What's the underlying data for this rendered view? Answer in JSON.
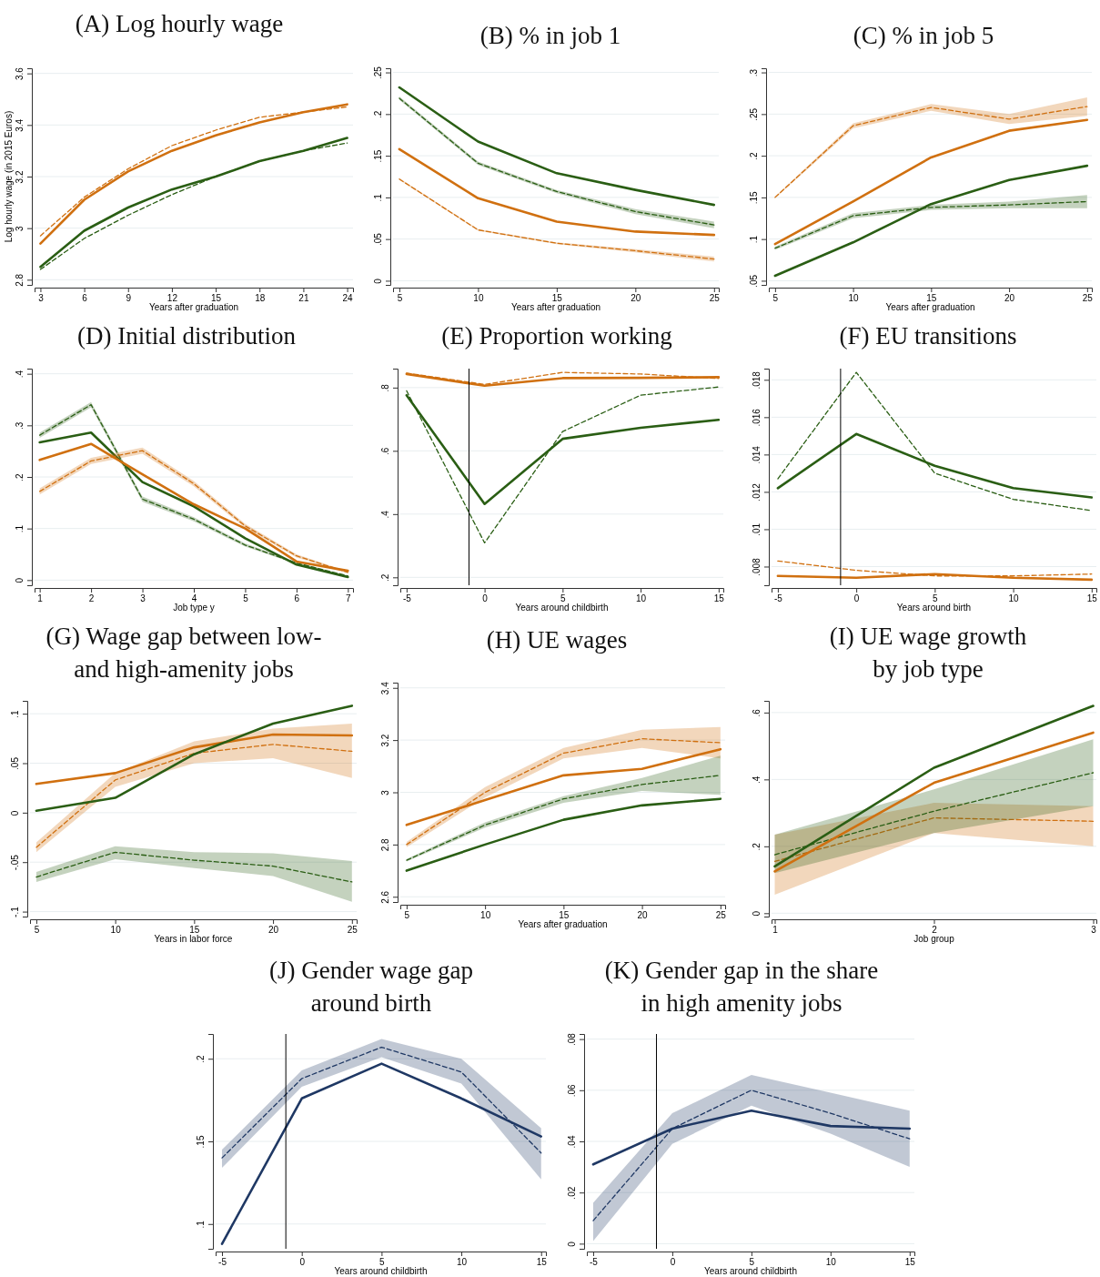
{
  "chart_data": [
    {
      "type": "line",
      "title": "(A) Log hourly wage",
      "xlabel": "Years after graduation",
      "ylabel": "Log hourly wage (in 2015 Euros)",
      "x": [
        3,
        6,
        9,
        12,
        15,
        18,
        21,
        24
      ],
      "xlim": [
        2.6,
        24.4
      ],
      "xticks": [
        3,
        6,
        9,
        12,
        15,
        18,
        21,
        24
      ],
      "ylim": [
        2.78,
        3.62
      ],
      "yticks": [
        2.8,
        3,
        3.2,
        3.4,
        3.6
      ],
      "grid": "y",
      "series": [
        {
          "color": "#d07010",
          "line_style": "solid",
          "values": [
            2.94,
            3.11,
            3.22,
            3.3,
            3.36,
            3.41,
            3.45,
            3.48
          ]
        },
        {
          "color": "#d07010",
          "line_style": "dashed",
          "values": [
            2.97,
            3.12,
            3.23,
            3.32,
            3.38,
            3.43,
            3.45,
            3.47
          ]
        },
        {
          "color": "#2a5e14",
          "line_style": "solid",
          "values": [
            2.85,
            2.99,
            3.08,
            3.15,
            3.2,
            3.26,
            3.3,
            3.35
          ]
        },
        {
          "color": "#2a5e14",
          "line_style": "dashed",
          "values": [
            2.84,
            2.96,
            3.05,
            3.13,
            3.2,
            3.26,
            3.3,
            3.33
          ]
        }
      ]
    },
    {
      "type": "line",
      "title": "(B) % in job 1",
      "xlabel": "Years after graduation",
      "x": [
        5,
        10,
        15,
        20,
        25
      ],
      "xlim": [
        4.6,
        25.3
      ],
      "xticks": [
        5,
        10,
        15,
        20,
        25
      ],
      "ylim": [
        -0.005,
        0.255
      ],
      "yticks": [
        0,
        {
          "value": 0.05,
          "label": ".05"
        },
        {
          "value": 0.1,
          "label": ".1"
        },
        {
          "value": 0.15,
          "label": ".15"
        },
        {
          "value": 0.2,
          "label": ".2"
        },
        {
          "value": 0.25,
          "label": ".25"
        }
      ],
      "grid": "y",
      "series": [
        {
          "color": "#2a5e14",
          "line_style": "solid",
          "values": [
            0.232,
            0.167,
            0.129,
            0.109,
            0.091
          ]
        },
        {
          "color": "#2a5e14",
          "line_style": "dashed",
          "values": [
            0.219,
            0.141,
            0.107,
            0.083,
            0.067
          ],
          "lower": [
            0.217,
            0.139,
            0.105,
            0.08,
            0.063
          ],
          "upper": [
            0.221,
            0.143,
            0.109,
            0.086,
            0.071
          ]
        },
        {
          "color": "#d07010",
          "line_style": "solid",
          "values": [
            0.158,
            0.099,
            0.071,
            0.059,
            0.055
          ]
        },
        {
          "color": "#d07010",
          "line_style": "dashed",
          "values": [
            0.122,
            0.061,
            0.045,
            0.036,
            0.026
          ],
          "lower": [
            0.121,
            0.06,
            0.044,
            0.034,
            0.023
          ],
          "upper": [
            0.123,
            0.062,
            0.046,
            0.038,
            0.029
          ]
        }
      ]
    },
    {
      "type": "line",
      "title": "(C) % in job 5",
      "xlabel": "Years after graduation",
      "x": [
        5,
        10,
        15,
        20,
        25
      ],
      "xlim": [
        4.6,
        25.3
      ],
      "xticks": [
        5,
        10,
        15,
        20,
        25
      ],
      "ylim": [
        0.045,
        0.305
      ],
      "yticks": [
        {
          "value": 0.05,
          "label": ".05"
        },
        {
          "value": 0.1,
          "label": ".1"
        },
        {
          "value": 0.15,
          "label": ".15"
        },
        {
          "value": 0.2,
          "label": ".2"
        },
        {
          "value": 0.25,
          "label": ".25"
        },
        {
          "value": 0.3,
          "label": ".3"
        }
      ],
      "grid": "y",
      "series": [
        {
          "color": "#d07010",
          "line_style": "dashed",
          "values": [
            0.15,
            0.236,
            0.258,
            0.244,
            0.259
          ],
          "lower": [
            0.149,
            0.233,
            0.254,
            0.238,
            0.248
          ],
          "upper": [
            0.151,
            0.239,
            0.262,
            0.25,
            0.27
          ]
        },
        {
          "color": "#d07010",
          "line_style": "solid",
          "values": [
            0.094,
            0.145,
            0.198,
            0.23,
            0.243
          ]
        },
        {
          "color": "#2a5e14",
          "line_style": "solid",
          "values": [
            0.056,
            0.096,
            0.142,
            0.171,
            0.188
          ]
        },
        {
          "color": "#2a5e14",
          "line_style": "dashed",
          "values": [
            0.089,
            0.128,
            0.138,
            0.141,
            0.145
          ],
          "lower": [
            0.087,
            0.125,
            0.135,
            0.137,
            0.137
          ],
          "upper": [
            0.091,
            0.131,
            0.141,
            0.145,
            0.153
          ]
        }
      ]
    },
    {
      "type": "line",
      "title": "(D) Initial distribution",
      "xlabel": "Job type y",
      "x": [
        1,
        2,
        3,
        4,
        5,
        6,
        7
      ],
      "xlim": [
        0.9,
        7.1
      ],
      "xticks": [
        1,
        2,
        3,
        4,
        5,
        6,
        7
      ],
      "ylim": [
        -0.01,
        0.41
      ],
      "yticks": [
        0,
        {
          "value": 0.1,
          "label": ".1"
        },
        {
          "value": 0.2,
          "label": ".2"
        },
        {
          "value": 0.3,
          "label": ".3"
        },
        {
          "value": 0.4,
          "label": ".4"
        }
      ],
      "grid": "y",
      "series": [
        {
          "color": "#2a5e14",
          "line_style": "dashed",
          "values": [
            0.281,
            0.34,
            0.157,
            0.118,
            0.068,
            0.033,
            0.008
          ],
          "lower": [
            0.276,
            0.335,
            0.152,
            0.114,
            0.065,
            0.031,
            0.007
          ],
          "upper": [
            0.286,
            0.345,
            0.162,
            0.122,
            0.071,
            0.035,
            0.009
          ]
        },
        {
          "color": "#2a5e14",
          "line_style": "solid",
          "values": [
            0.267,
            0.286,
            0.19,
            0.143,
            0.081,
            0.03,
            0.006
          ]
        },
        {
          "color": "#d07010",
          "line_style": "solid",
          "values": [
            0.233,
            0.264,
            0.205,
            0.147,
            0.1,
            0.036,
            0.018
          ]
        },
        {
          "color": "#d07010",
          "line_style": "dashed",
          "values": [
            0.172,
            0.231,
            0.251,
            0.187,
            0.105,
            0.047,
            0.015
          ],
          "lower": [
            0.166,
            0.225,
            0.245,
            0.182,
            0.101,
            0.044,
            0.013
          ],
          "upper": [
            0.178,
            0.237,
            0.257,
            0.192,
            0.109,
            0.05,
            0.017
          ]
        }
      ]
    },
    {
      "type": "line",
      "title": "(E) Proportion working",
      "xlabel": "Years around childbirth",
      "x": [
        -5,
        0,
        5,
        10,
        15
      ],
      "xlim": [
        -5.4,
        15.3
      ],
      "xticks": [
        -5,
        0,
        5,
        10,
        15
      ],
      "ylim": [
        0.175,
        0.86
      ],
      "yticks": [
        {
          "value": 0.2,
          "label": ".2"
        },
        {
          "value": 0.4,
          "label": ".4"
        },
        {
          "value": 0.6,
          "label": ".6"
        },
        {
          "value": 0.8,
          "label": ".8"
        }
      ],
      "grid": "y",
      "ref_lines": [
        {
          "axis": "x",
          "value": -1,
          "color": "#000000"
        }
      ],
      "series": [
        {
          "color": "#d07010",
          "line_style": "solid",
          "values": [
            0.843,
            0.806,
            0.83,
            0.831,
            0.833
          ]
        },
        {
          "color": "#d07010",
          "line_style": "dashed",
          "values": [
            0.846,
            0.81,
            0.848,
            0.843,
            0.829
          ]
        },
        {
          "color": "#2a5e14",
          "line_style": "solid",
          "values": [
            0.776,
            0.432,
            0.638,
            0.673,
            0.698
          ]
        },
        {
          "color": "#2a5e14",
          "line_style": "dashed",
          "values": [
            0.79,
            0.309,
            0.661,
            0.776,
            0.802
          ]
        }
      ]
    },
    {
      "type": "line",
      "title": "(F) EU transitions",
      "xlabel": "Years around birth",
      "x": [
        -5,
        0,
        5,
        10,
        15
      ],
      "xlim": [
        -5.4,
        15.3
      ],
      "xticks": [
        -5,
        0,
        5,
        10,
        15
      ],
      "ylim": [
        0.007,
        0.0186
      ],
      "yticks": [
        {
          "value": 0.008,
          "label": ".008"
        },
        {
          "value": 0.01,
          "label": ".01"
        },
        {
          "value": 0.012,
          "label": ".012"
        },
        {
          "value": 0.014,
          "label": ".014"
        },
        {
          "value": 0.016,
          "label": ".016"
        },
        {
          "value": 0.018,
          "label": ".018"
        }
      ],
      "grid": "y",
      "ref_lines": [
        {
          "axis": "x",
          "value": -1,
          "color": "#000000"
        }
      ],
      "series": [
        {
          "color": "#2a5e14",
          "line_style": "solid",
          "values": [
            0.0122,
            0.0151,
            0.0134,
            0.0122,
            0.0117
          ]
        },
        {
          "color": "#2a5e14",
          "line_style": "dashed",
          "values": [
            0.0127,
            0.0184,
            0.013,
            0.0116,
            0.011
          ]
        },
        {
          "color": "#d07010",
          "line_style": "solid",
          "values": [
            0.0075,
            0.0074,
            0.0076,
            0.0074,
            0.0073
          ]
        },
        {
          "color": "#d07010",
          "line_style": "dashed",
          "values": [
            0.0083,
            0.0078,
            0.0075,
            0.0075,
            0.0076
          ]
        }
      ]
    },
    {
      "type": "line",
      "title": "(G) Wage gap between low-\nand high-amenity jobs",
      "xlabel": "Years in labor force",
      "x": [
        5,
        10,
        15,
        20,
        25
      ],
      "xlim": [
        4.6,
        25.3
      ],
      "xticks": [
        5,
        10,
        15,
        20,
        25
      ],
      "ylim": [
        -0.105,
        0.113
      ],
      "yticks": [
        {
          "value": -0.1,
          "label": "-.1"
        },
        {
          "value": -0.05,
          "label": "-.05"
        },
        0,
        {
          "value": 0.05,
          "label": ".05"
        },
        {
          "value": 0.1,
          "label": ".1"
        }
      ],
      "grid": "y",
      "series": [
        {
          "color": "#d07010",
          "line_style": "dashed",
          "values": [
            -0.035,
            0.033,
            0.06,
            0.069,
            0.062
          ],
          "lower": [
            -0.04,
            0.026,
            0.05,
            0.055,
            0.035
          ],
          "upper": [
            -0.03,
            0.04,
            0.072,
            0.085,
            0.09
          ]
        },
        {
          "color": "#2a5e14",
          "line_style": "dashed",
          "values": [
            -0.065,
            -0.04,
            -0.048,
            -0.054,
            -0.07
          ],
          "lower": [
            -0.07,
            -0.047,
            -0.056,
            -0.064,
            -0.09
          ],
          "upper": [
            -0.06,
            -0.034,
            -0.04,
            -0.041,
            -0.049
          ]
        },
        {
          "color": "#d07010",
          "line_style": "solid",
          "values": [
            0.029,
            0.04,
            0.066,
            0.079,
            0.078
          ]
        },
        {
          "color": "#2a5e14",
          "line_style": "solid",
          "values": [
            0.002,
            0.015,
            0.059,
            0.09,
            0.108
          ]
        }
      ]
    },
    {
      "type": "line",
      "title": "(H) UE wages",
      "xlabel": "Years after graduation",
      "x": [
        5,
        10,
        15,
        20,
        25
      ],
      "xlim": [
        4.6,
        25.3
      ],
      "xticks": [
        5,
        10,
        15,
        20,
        25
      ],
      "ylim": [
        2.58,
        3.42
      ],
      "yticks": [
        2.6,
        2.8,
        3,
        3.2,
        3.4
      ],
      "grid": "y",
      "series": [
        {
          "color": "#d07010",
          "line_style": "dashed",
          "values": [
            2.8,
            3.0,
            3.15,
            3.205,
            3.19
          ],
          "lower": [
            2.79,
            2.98,
            3.13,
            3.17,
            3.13
          ],
          "upper": [
            2.81,
            3.02,
            3.17,
            3.24,
            3.25
          ]
        },
        {
          "color": "#2a5e14",
          "line_style": "dashed",
          "values": [
            2.74,
            2.875,
            2.975,
            3.03,
            3.065
          ],
          "lower": [
            2.735,
            2.865,
            2.96,
            3.005,
            2.99
          ],
          "upper": [
            2.745,
            2.885,
            2.985,
            3.055,
            3.14
          ]
        },
        {
          "color": "#d07010",
          "line_style": "solid",
          "values": [
            2.875,
            2.97,
            3.065,
            3.09,
            3.165
          ]
        },
        {
          "color": "#2a5e14",
          "line_style": "solid",
          "values": [
            2.7,
            2.8,
            2.895,
            2.95,
            2.975
          ]
        }
      ]
    },
    {
      "type": "line",
      "title": "(I) UE wage growth\nby job type",
      "xlabel": "Job group",
      "x": [
        1,
        2,
        3
      ],
      "xlim": [
        0.98,
        3.02
      ],
      "xticks": [
        1,
        2,
        3
      ],
      "ylim": [
        -0.01,
        0.635
      ],
      "yticks": [
        0,
        {
          "value": 0.2,
          "label": ".2"
        },
        {
          "value": 0.4,
          "label": ".4"
        },
        {
          "value": 0.6,
          "label": ".6"
        }
      ],
      "grid": "y",
      "series": [
        {
          "color": "#d07010",
          "line_style": "dashed",
          "values": [
            0.155,
            0.285,
            0.275
          ],
          "lower": [
            0.055,
            0.24,
            0.2
          ],
          "upper": [
            0.235,
            0.33,
            0.32
          ]
        },
        {
          "color": "#2a5e14",
          "line_style": "dashed",
          "values": [
            0.175,
            0.305,
            0.42
          ],
          "lower": [
            0.12,
            0.24,
            0.32
          ],
          "upper": [
            0.235,
            0.37,
            0.52
          ]
        },
        {
          "color": "#2a5e14",
          "line_style": "solid",
          "values": [
            0.14,
            0.435,
            0.62
          ]
        },
        {
          "color": "#d07010",
          "line_style": "solid",
          "values": [
            0.125,
            0.39,
            0.54
          ]
        }
      ]
    },
    {
      "type": "line",
      "title": "(J) Gender wage gap\naround birth",
      "xlabel": "Years around childbirth",
      "x": [
        -5,
        0,
        5,
        10,
        15
      ],
      "xlim": [
        -5.4,
        15.3
      ],
      "xticks": [
        -5,
        0,
        5,
        10,
        15
      ],
      "ylim": [
        0.085,
        0.215
      ],
      "yticks": [
        {
          "value": 0.1,
          "label": ".1"
        },
        {
          "value": 0.15,
          "label": ".15"
        },
        {
          "value": 0.2,
          "label": ".2"
        }
      ],
      "grid": "y",
      "ref_lines": [
        {
          "axis": "x",
          "value": -1,
          "color": "#000000"
        }
      ],
      "series": [
        {
          "color": "#1f3864",
          "line_style": "dashed",
          "values": [
            0.14,
            0.188,
            0.207,
            0.192,
            0.143
          ],
          "lower": [
            0.134,
            0.183,
            0.201,
            0.185,
            0.127
          ],
          "upper": [
            0.145,
            0.193,
            0.212,
            0.2,
            0.158
          ]
        },
        {
          "color": "#1f3864",
          "line_style": "solid",
          "values": [
            0.088,
            0.176,
            0.197,
            0.176,
            0.153
          ]
        }
      ]
    },
    {
      "type": "line",
      "title": "(K) Gender gap in the share\nin high amenity jobs",
      "xlabel": "Years around childbirth",
      "x": [
        -5,
        0,
        5,
        10,
        15
      ],
      "xlim": [
        -5.4,
        15.3
      ],
      "xticks": [
        -5,
        0,
        5,
        10,
        15
      ],
      "ylim": [
        -0.002,
        0.082
      ],
      "yticks": [
        0,
        {
          "value": 0.02,
          "label": ".02"
        },
        {
          "value": 0.04,
          "label": ".04"
        },
        {
          "value": 0.06,
          "label": ".06"
        },
        {
          "value": 0.08,
          "label": ".08"
        }
      ],
      "grid": "y",
      "ref_lines": [
        {
          "axis": "x",
          "value": -1,
          "color": "#000000"
        }
      ],
      "series": [
        {
          "color": "#1f3864",
          "line_style": "dashed",
          "values": [
            0.009,
            0.045,
            0.06,
            0.051,
            0.041
          ],
          "lower": [
            0.001,
            0.039,
            0.054,
            0.043,
            0.03
          ],
          "upper": [
            0.016,
            0.051,
            0.066,
            0.059,
            0.052
          ]
        },
        {
          "color": "#1f3864",
          "line_style": "solid",
          "values": [
            0.031,
            0.045,
            0.052,
            0.046,
            0.045
          ]
        }
      ]
    }
  ]
}
